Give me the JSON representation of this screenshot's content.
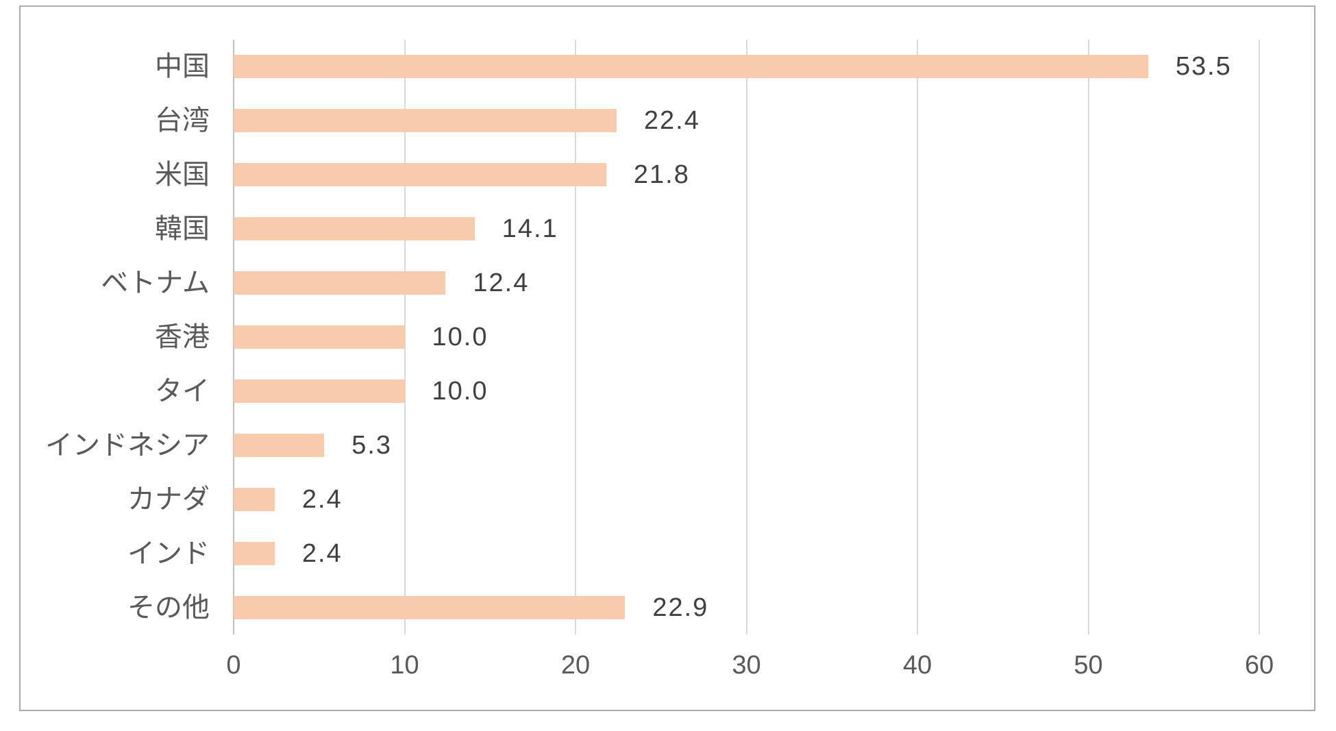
{
  "chart_data": {
    "type": "bar",
    "orientation": "horizontal",
    "title": "",
    "xlabel": "",
    "ylabel": "",
    "legend": "none",
    "grid": "vertical gridlines on",
    "categories": [
      "中国",
      "台湾",
      "米国",
      "韓国",
      "ベトナム",
      "香港",
      "タイ",
      "インドネシア",
      "カナダ",
      "インド",
      "その他"
    ],
    "values": [
      53.5,
      22.4,
      21.8,
      14.1,
      12.4,
      10.0,
      10.0,
      5.3,
      2.4,
      2.4,
      22.9
    ],
    "value_labels": [
      "53.5",
      "22.4",
      "21.8",
      "14.1",
      "12.4",
      "10.0",
      "10.0",
      "5.3",
      "2.4",
      "2.4",
      "22.9"
    ],
    "x_ticks": [
      "0",
      "10",
      "20",
      "30",
      "40",
      "50",
      "60"
    ],
    "xlim": [
      0,
      60
    ],
    "colors": {
      "bar_fill": "#f8cbad",
      "gridline": "#d9d9d9",
      "axis_line": "#bfbfbf",
      "value_label_text": "#404040",
      "category_label_text": "#595959",
      "tick_label_text": "#595959",
      "frame_border": "#ababab",
      "background": "#ffffff"
    }
  }
}
